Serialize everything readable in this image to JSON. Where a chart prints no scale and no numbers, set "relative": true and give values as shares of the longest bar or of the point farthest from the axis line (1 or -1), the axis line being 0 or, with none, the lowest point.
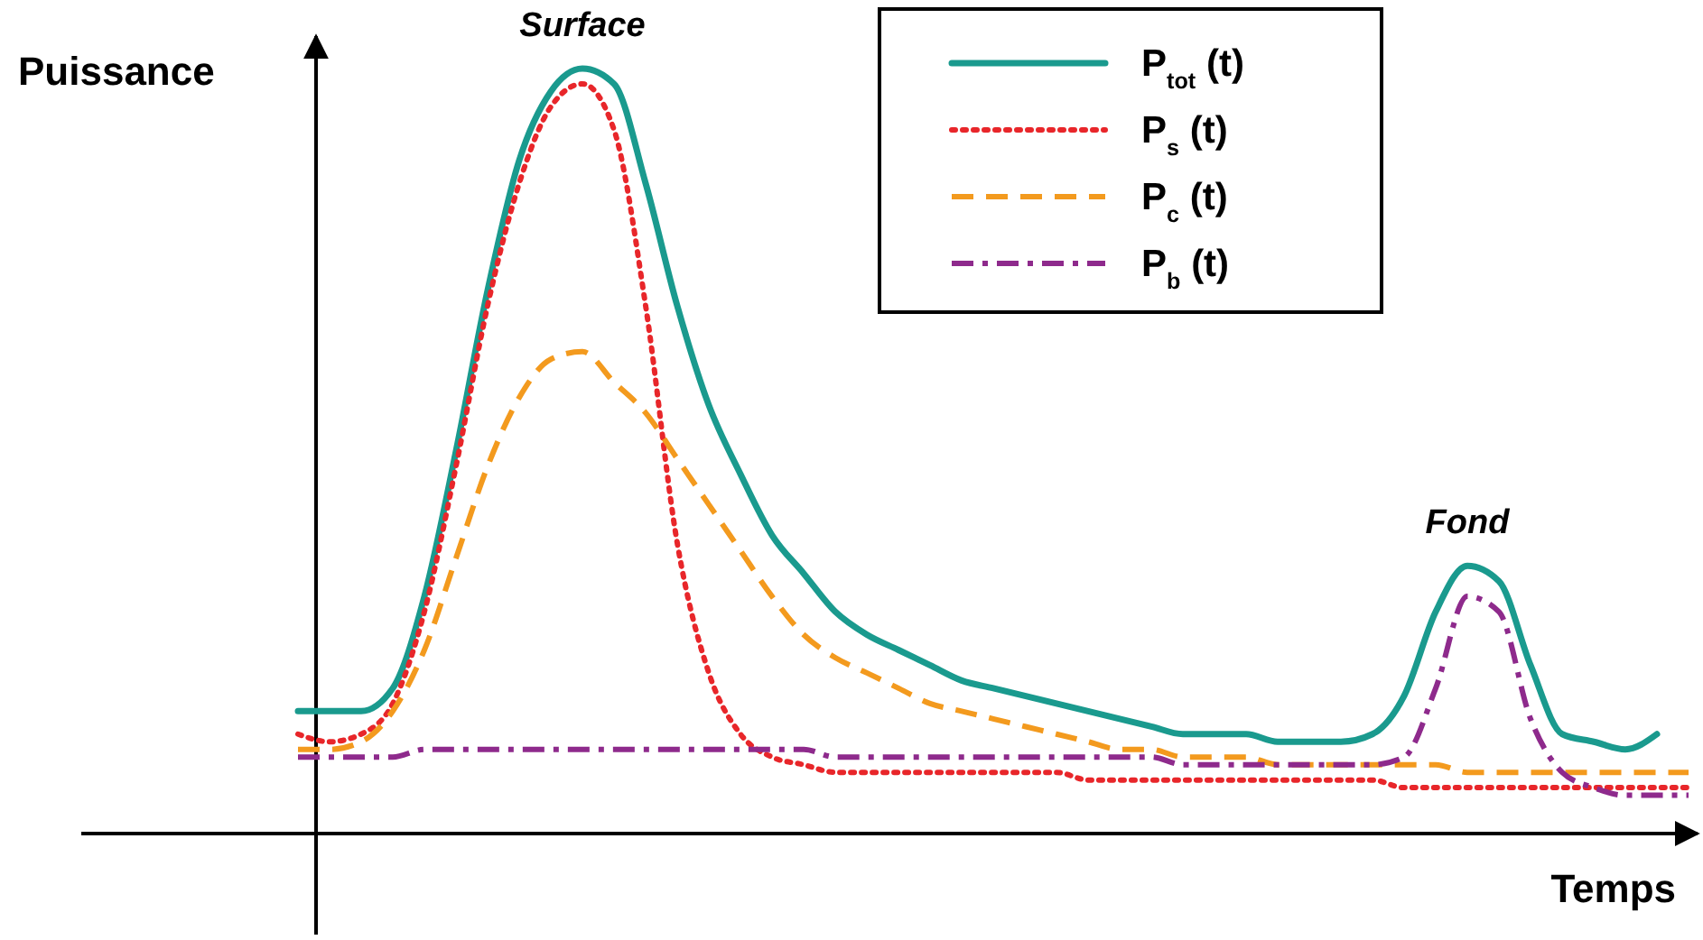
{
  "chart_data": {
    "type": "line",
    "relative": true,
    "xlabel": "Temps",
    "ylabel": "Puissance",
    "legend": "top right",
    "annotations": [
      "Surface",
      "Fond"
    ],
    "categories": [
      null,
      null,
      null,
      null,
      null,
      null,
      null,
      null,
      null,
      null,
      null,
      null,
      null,
      null,
      null,
      null,
      null,
      null,
      null,
      null,
      null,
      null,
      null,
      null,
      null,
      null,
      null,
      null,
      null,
      null,
      null,
      null,
      null,
      null,
      null,
      null,
      null,
      null,
      null,
      null,
      null,
      null,
      null,
      null,
      null
    ],
    "series": [
      {
        "name": "P$_{tot}$(t)",
        "color": "#1a9a8e",
        "line_style": "solid",
        "values": [
          0.16,
          0.16,
          0.16,
          0.19,
          0.31,
          0.5,
          0.71,
          0.88,
          0.97,
          1,
          0.98,
          0.85,
          0.69,
          0.56,
          0.47,
          0.39,
          0.34,
          0.29,
          0.26,
          0.24,
          0.22,
          0.2,
          0.19,
          0.18,
          0.17,
          0.16,
          0.15,
          0.14,
          0.13,
          0.13,
          0.13,
          0.12,
          0.12,
          0.12,
          0.13,
          0.18,
          0.29,
          0.35,
          0.33,
          0.22,
          0.13,
          0.12,
          0.11,
          0.13,
          null
        ]
      },
      {
        "name": "P$_{s}$(t)",
        "color": "#e8262a",
        "line_style": "dotted",
        "values": [
          0.13,
          0.12,
          0.13,
          0.17,
          0.29,
          0.48,
          0.69,
          0.85,
          0.95,
          0.98,
          0.92,
          0.69,
          0.38,
          0.21,
          0.13,
          0.1,
          0.09,
          0.08,
          0.08,
          0.08,
          0.08,
          0.08,
          0.08,
          0.08,
          0.08,
          0.07,
          0.07,
          0.07,
          0.07,
          0.07,
          0.07,
          0.07,
          0.07,
          0.07,
          0.07,
          0.06,
          0.06,
          0.06,
          0.06,
          0.06,
          0.06,
          0.06,
          0.06,
          0.06,
          0.06
        ]
      },
      {
        "name": "P$_{c}$(t)",
        "color": "#f39a1e",
        "line_style": "dashed",
        "values": [
          0.11,
          0.11,
          0.12,
          0.16,
          0.24,
          0.36,
          0.48,
          0.57,
          0.62,
          0.63,
          0.59,
          0.55,
          0.49,
          0.43,
          0.37,
          0.31,
          0.26,
          0.23,
          0.21,
          0.19,
          0.17,
          0.16,
          0.15,
          0.14,
          0.13,
          0.12,
          0.11,
          0.11,
          0.1,
          0.1,
          0.1,
          0.09,
          0.09,
          0.09,
          0.09,
          0.09,
          0.09,
          0.08,
          0.08,
          0.08,
          0.08,
          0.08,
          0.08,
          0.08,
          0.08
        ]
      },
      {
        "name": "P$_{b}$(t)",
        "color": "#8e2a8c",
        "line_style": "dashdot",
        "values": [
          0.1,
          0.1,
          0.1,
          0.1,
          0.11,
          0.11,
          0.11,
          0.11,
          0.11,
          0.11,
          0.11,
          0.11,
          0.11,
          0.11,
          0.11,
          0.11,
          0.11,
          0.1,
          0.1,
          0.1,
          0.1,
          0.1,
          0.1,
          0.1,
          0.1,
          0.1,
          0.1,
          0.1,
          0.09,
          0.09,
          0.09,
          0.09,
          0.09,
          0.09,
          0.09,
          0.1,
          0.19,
          0.31,
          0.29,
          0.15,
          0.08,
          0.06,
          0.05,
          0.05,
          0.05
        ]
      }
    ]
  }
}
